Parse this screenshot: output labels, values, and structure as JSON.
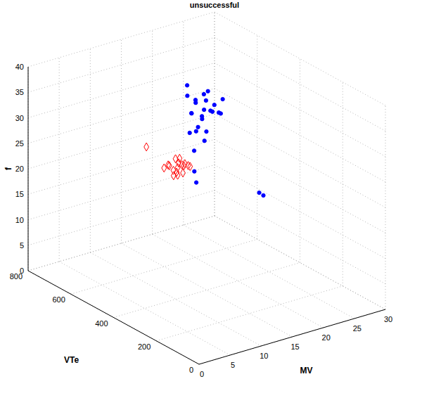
{
  "chart_data": {
    "type": "scatter3d",
    "title": "unsuccessful",
    "x_label": "MV",
    "y_label": "VTe",
    "z_label": "f",
    "xlim": [
      0,
      30
    ],
    "ylim": [
      0,
      800
    ],
    "zlim": [
      0,
      40
    ],
    "xticks": [
      0,
      5,
      10,
      15,
      20,
      25,
      30
    ],
    "yticks": [
      0,
      200,
      400,
      600,
      800
    ],
    "zticks": [
      0,
      5,
      10,
      15,
      20,
      25,
      30,
      35,
      40
    ],
    "grid": true,
    "series": [
      {
        "color": "#0000ff",
        "marker": "dot",
        "x": [
          18,
          19,
          17,
          20,
          18,
          19,
          17,
          20,
          18,
          16,
          19,
          21,
          17,
          18,
          20,
          16,
          19,
          15,
          16,
          14,
          15,
          17,
          17,
          14,
          20,
          20.5,
          13,
          16
        ],
        "y": [
          500,
          520,
          480,
          510,
          540,
          490,
          510,
          480,
          470,
          500,
          530,
          500,
          530,
          510,
          540,
          470,
          460,
          480,
          440,
          430,
          450,
          460,
          550,
          420,
          300,
          295,
          400,
          520
        ],
        "z": [
          32,
          33,
          31,
          32,
          33,
          31.5,
          33.5,
          31,
          32.5,
          32,
          34,
          33,
          31,
          30.5,
          34,
          30,
          32,
          29,
          28,
          27,
          30,
          29,
          36,
          21,
          19.6,
          19,
          24,
          35
        ]
      },
      {
        "color": "#ff0000",
        "marker": "diamond",
        "x": [
          11,
          11.5,
          10.5,
          11,
          12,
          10,
          11,
          12,
          10.5,
          11.5,
          11,
          12.5,
          10,
          11,
          12,
          7,
          13,
          9.5
        ],
        "y": [
          420,
          430,
          410,
          440,
          420,
          430,
          400,
          440,
          450,
          410,
          430,
          430,
          410,
          420,
          400,
          450,
          420,
          440
        ],
        "z": [
          25,
          25.5,
          24.5,
          24,
          25,
          25.5,
          26,
          26,
          25,
          24,
          26.5,
          25,
          24,
          23.5,
          25.5,
          29.8,
          24.5,
          25
        ]
      }
    ]
  }
}
